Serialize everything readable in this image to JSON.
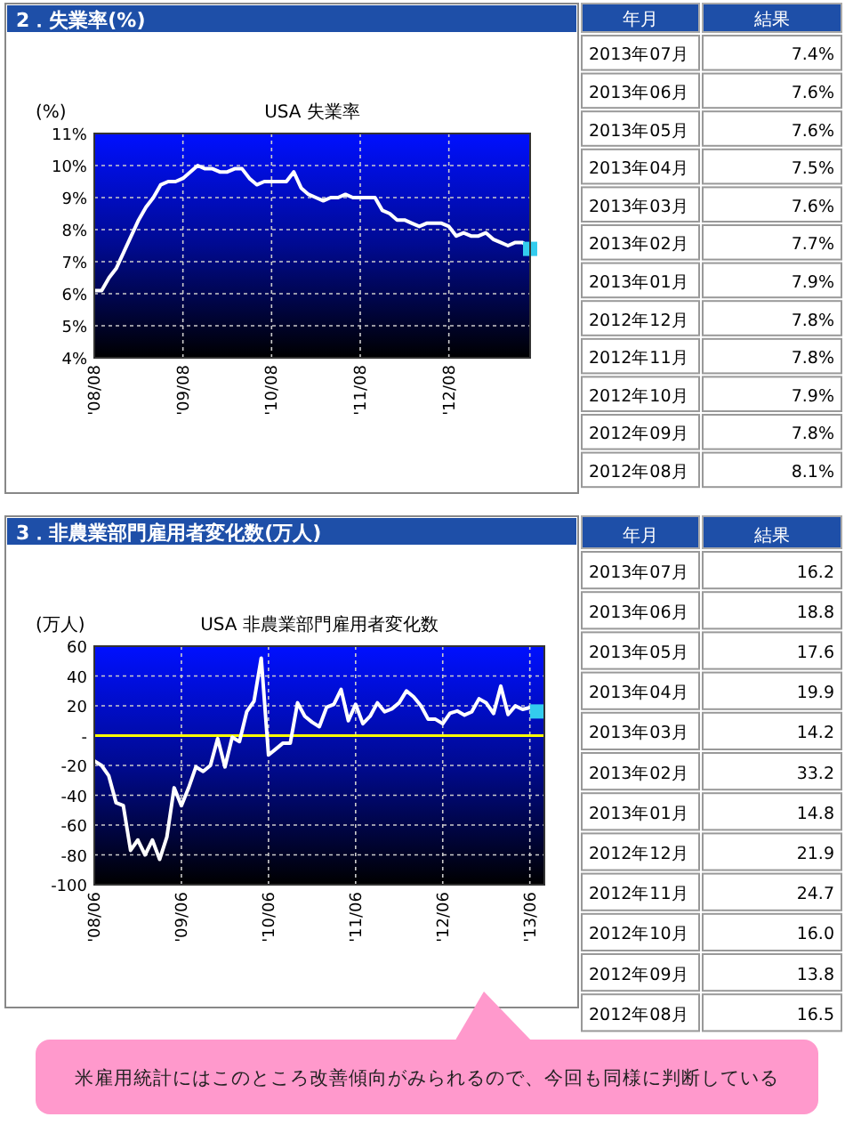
{
  "chart_data": [
    {
      "type": "line",
      "title": "2．失業率(%)",
      "subtitle": "USA 失業率",
      "ylabel": "(%)",
      "xlim": [
        "2008-08",
        "2013-07"
      ],
      "ylim": [
        4,
        11
      ],
      "yticks": [
        {
          "value": 4,
          "label": "4%"
        },
        {
          "value": 5,
          "label": "5%"
        },
        {
          "value": 6,
          "label": "6%"
        },
        {
          "value": 7,
          "label": "7%"
        },
        {
          "value": 8,
          "label": "8%"
        },
        {
          "value": 9,
          "label": "9%"
        },
        {
          "value": 10,
          "label": "10%"
        },
        {
          "value": 11,
          "label": "11%"
        }
      ],
      "xticks": [
        {
          "value": "2008-08",
          "label": "'08/08"
        },
        {
          "value": "2009-08",
          "label": "'09/08"
        },
        {
          "value": "2010-08",
          "label": "'10/08"
        },
        {
          "value": "2011-08",
          "label": "'11/08"
        },
        {
          "value": "2012-08",
          "label": "'12/08"
        }
      ],
      "grid": true,
      "line_style": "solid",
      "x": [
        "2008-08",
        "2008-09",
        "2008-10",
        "2008-11",
        "2008-12",
        "2009-01",
        "2009-02",
        "2009-03",
        "2009-04",
        "2009-05",
        "2009-06",
        "2009-07",
        "2009-08",
        "2009-09",
        "2009-10",
        "2009-11",
        "2009-12",
        "2010-01",
        "2010-02",
        "2010-03",
        "2010-04",
        "2010-05",
        "2010-06",
        "2010-07",
        "2010-08",
        "2010-09",
        "2010-10",
        "2010-11",
        "2010-12",
        "2011-01",
        "2011-02",
        "2011-03",
        "2011-04",
        "2011-05",
        "2011-06",
        "2011-07",
        "2011-08",
        "2011-09",
        "2011-10",
        "2011-11",
        "2011-12",
        "2012-01",
        "2012-02",
        "2012-03",
        "2012-04",
        "2012-05",
        "2012-06",
        "2012-07",
        "2012-08",
        "2012-09",
        "2012-10",
        "2012-11",
        "2012-12",
        "2013-01",
        "2013-02",
        "2013-03",
        "2013-04",
        "2013-05",
        "2013-06",
        "2013-07"
      ],
      "series": [
        {
          "color": "#ffffff",
          "marker": "none",
          "values": [
            6.1,
            6.1,
            6.5,
            6.8,
            7.3,
            7.8,
            8.3,
            8.7,
            9.0,
            9.4,
            9.5,
            9.5,
            9.6,
            9.8,
            10.0,
            9.9,
            9.9,
            9.8,
            9.8,
            9.9,
            9.9,
            9.6,
            9.4,
            9.5,
            9.5,
            9.5,
            9.5,
            9.8,
            9.3,
            9.1,
            9.0,
            8.9,
            9.0,
            9.0,
            9.1,
            9.0,
            9.0,
            9.0,
            9.0,
            8.6,
            8.5,
            8.3,
            8.3,
            8.2,
            8.1,
            8.2,
            8.2,
            8.2,
            8.1,
            7.8,
            7.9,
            7.8,
            7.8,
            7.9,
            7.7,
            7.6,
            7.5,
            7.6,
            7.6,
            7.4
          ]
        },
        {
          "type": "scatter",
          "color": "#33ccee",
          "marker": "square",
          "values": [
            null,
            null,
            null,
            null,
            null,
            null,
            null,
            null,
            null,
            null,
            null,
            null,
            null,
            null,
            null,
            null,
            null,
            null,
            null,
            null,
            null,
            null,
            null,
            null,
            null,
            null,
            null,
            null,
            null,
            null,
            null,
            null,
            null,
            null,
            null,
            null,
            null,
            null,
            null,
            null,
            null,
            null,
            null,
            null,
            null,
            null,
            null,
            null,
            null,
            null,
            null,
            null,
            null,
            null,
            null,
            null,
            null,
            null,
            null,
            7.4
          ]
        }
      ]
    },
    {
      "type": "other",
      "xlabel": "年月",
      "ylabel": "結果",
      "categories": [
        "2013年07月",
        "2013年06月",
        "2013年05月",
        "2013年04月",
        "2013年03月",
        "2013年02月",
        "2013年01月",
        "2012年12月",
        "2012年11月",
        "2012年10月",
        "2012年09月",
        "2012年08月"
      ],
      "value_labels": [
        "7.4%",
        "7.6%",
        "7.6%",
        "7.5%",
        "7.6%",
        "7.7%",
        "7.9%",
        "7.8%",
        "7.8%",
        "7.9%",
        "7.8%",
        "8.1%"
      ]
    },
    {
      "type": "line",
      "title": "3．非農業部門雇用者変化数(万人)",
      "subtitle": "USA 非農業部門雇用者変化数",
      "ylabel": "(万人)",
      "xlim": [
        "2008-06",
        "2013-08"
      ],
      "ylim": [
        -100,
        60
      ],
      "yticks": [
        -100,
        -80,
        -60,
        -40,
        -20,
        {
          "value": 0,
          "label": "-"
        },
        20,
        40,
        60
      ],
      "xticks": [
        {
          "value": "2008-06",
          "label": "'08/06"
        },
        {
          "value": "2009-06",
          "label": "'09/06"
        },
        {
          "value": "2010-06",
          "label": "'10/06"
        },
        {
          "value": "2011-06",
          "label": "'11/06"
        },
        {
          "value": "2012-06",
          "label": "'12/06"
        },
        {
          "value": "2013-06",
          "label": "'13/06"
        }
      ],
      "grid": true,
      "line_style": "solid",
      "ref_lines": [
        {
          "axis": "y",
          "value": 0,
          "color": "#ffff00"
        }
      ],
      "annotations": [
        "米雇用統計にはこのところ改善傾向がみられるので、今回も同様に判断している"
      ],
      "x": [
        "2008-06",
        "2008-07",
        "2008-08",
        "2008-09",
        "2008-10",
        "2008-11",
        "2008-12",
        "2009-01",
        "2009-02",
        "2009-03",
        "2009-04",
        "2009-05",
        "2009-06",
        "2009-07",
        "2009-08",
        "2009-09",
        "2009-10",
        "2009-11",
        "2009-12",
        "2010-01",
        "2010-02",
        "2010-03",
        "2010-04",
        "2010-05",
        "2010-06",
        "2010-07",
        "2010-08",
        "2010-09",
        "2010-10",
        "2010-11",
        "2010-12",
        "2011-01",
        "2011-02",
        "2011-03",
        "2011-04",
        "2011-05",
        "2011-06",
        "2011-07",
        "2011-08",
        "2011-09",
        "2011-10",
        "2011-11",
        "2011-12",
        "2012-01",
        "2012-02",
        "2012-03",
        "2012-04",
        "2012-05",
        "2012-06",
        "2012-07",
        "2012-08",
        "2012-09",
        "2012-10",
        "2012-11",
        "2012-12",
        "2013-01",
        "2013-02",
        "2013-03",
        "2013-04",
        "2013-05",
        "2013-06",
        "2013-07"
      ],
      "series": [
        {
          "color": "#ffffff",
          "marker": "none",
          "values": [
            -17,
            -20,
            -27,
            -45,
            -47,
            -77,
            -70,
            -80,
            -70,
            -83,
            -68,
            -35,
            -47,
            -35,
            -21,
            -24,
            -20,
            -2,
            -21,
            -1,
            -4,
            16,
            23,
            52,
            -13,
            -9,
            -5,
            -5,
            22,
            13,
            9,
            6,
            19,
            21,
            31,
            10,
            21,
            8,
            13,
            22,
            16,
            18,
            22,
            30,
            26,
            20,
            11,
            11,
            8,
            15,
            16.5,
            13.8,
            16.0,
            24.7,
            21.9,
            14.8,
            33.2,
            14.2,
            19.9,
            17.6,
            18.8,
            16.2
          ]
        },
        {
          "type": "scatter",
          "color": "#33ccee",
          "marker": "square",
          "values": [
            null,
            null,
            null,
            null,
            null,
            null,
            null,
            null,
            null,
            null,
            null,
            null,
            null,
            null,
            null,
            null,
            null,
            null,
            null,
            null,
            null,
            null,
            null,
            null,
            null,
            null,
            null,
            null,
            null,
            null,
            null,
            null,
            null,
            null,
            null,
            null,
            null,
            null,
            null,
            null,
            null,
            null,
            null,
            null,
            null,
            null,
            null,
            null,
            null,
            null,
            null,
            null,
            null,
            null,
            null,
            null,
            null,
            null,
            null,
            null,
            null,
            16.2
          ]
        }
      ]
    },
    {
      "type": "other",
      "xlabel": "年月",
      "ylabel": "結果",
      "categories": [
        "2013年07月",
        "2013年06月",
        "2013年05月",
        "2013年04月",
        "2013年03月",
        "2013年02月",
        "2013年01月",
        "2012年12月",
        "2012年11月",
        "2012年10月",
        "2012年09月",
        "2012年08月"
      ],
      "value_labels": [
        "16.2",
        "18.8",
        "17.6",
        "19.9",
        "14.2",
        "33.2",
        "14.8",
        "21.9",
        "24.7",
        "16.0",
        "13.8",
        "16.5"
      ]
    }
  ]
}
